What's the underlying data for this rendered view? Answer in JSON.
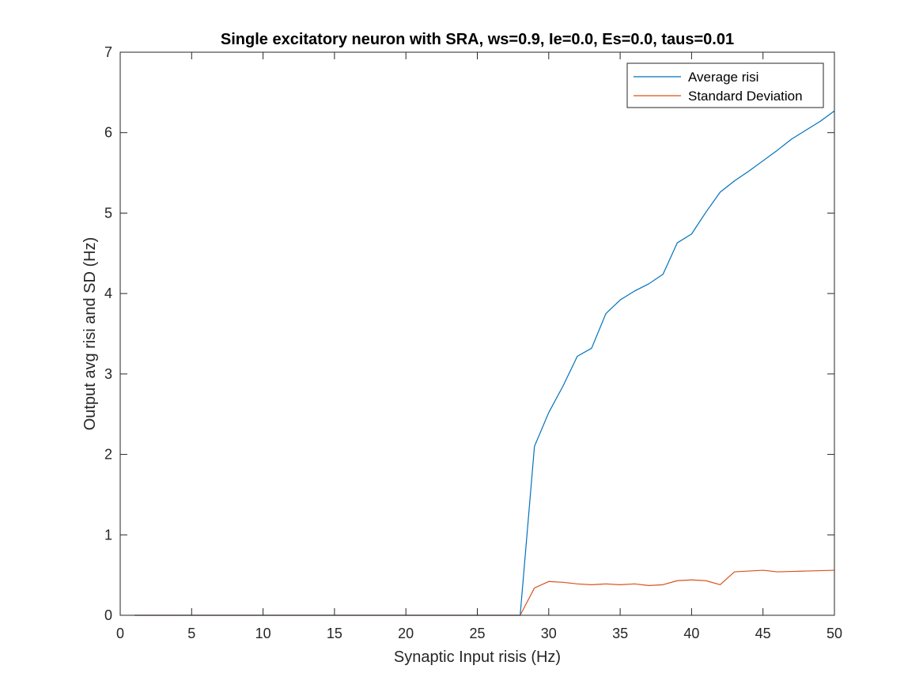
{
  "chart_data": {
    "type": "line",
    "title": "Single excitatory neuron with SRA, ws=0.9, Ie=0.0, Es=0.0, taus=0.01",
    "xlabel": "Synaptic Input risis (Hz)",
    "ylabel": "Output avg risi and SD (Hz)",
    "xlim": [
      0,
      50
    ],
    "ylim": [
      0,
      7
    ],
    "xticks": [
      0,
      5,
      10,
      15,
      20,
      25,
      30,
      35,
      40,
      45,
      50
    ],
    "yticks": [
      0,
      1,
      2,
      3,
      4,
      5,
      6,
      7
    ],
    "grid": false,
    "legend_position": "top-right",
    "x": [
      1,
      2,
      3,
      4,
      5,
      6,
      7,
      8,
      9,
      10,
      11,
      12,
      13,
      14,
      15,
      16,
      17,
      18,
      19,
      20,
      21,
      22,
      23,
      24,
      25,
      26,
      27,
      28,
      29,
      30,
      31,
      32,
      33,
      34,
      35,
      36,
      37,
      38,
      39,
      40,
      41,
      42,
      43,
      44,
      45,
      46,
      47,
      48,
      49,
      50
    ],
    "series": [
      {
        "name": "Average risi",
        "color": "#0072BD",
        "values": [
          0,
          0,
          0,
          0,
          0,
          0,
          0,
          0,
          0,
          0,
          0,
          0,
          0,
          0,
          0,
          0,
          0,
          0,
          0,
          0,
          0,
          0,
          0,
          0,
          0,
          0,
          0,
          0,
          2.1,
          2.52,
          2.85,
          3.22,
          3.32,
          3.75,
          3.92,
          4.03,
          4.12,
          4.24,
          4.63,
          4.74,
          5.01,
          5.26,
          5.4,
          5.52,
          5.65,
          5.78,
          5.92,
          6.03,
          6.14,
          6.27
        ]
      },
      {
        "name": "Standard Deviation",
        "color": "#D95319",
        "values": [
          0,
          0,
          0,
          0,
          0,
          0,
          0,
          0,
          0,
          0,
          0,
          0,
          0,
          0,
          0,
          0,
          0,
          0,
          0,
          0,
          0,
          0,
          0,
          0,
          0,
          0,
          0,
          0,
          0.34,
          0.42,
          0.41,
          0.39,
          0.38,
          0.39,
          0.38,
          0.39,
          0.37,
          0.38,
          0.43,
          0.44,
          0.43,
          0.38,
          0.54,
          0.55,
          0.56,
          0.54,
          0.545,
          0.55,
          0.555,
          0.56
        ]
      }
    ]
  }
}
